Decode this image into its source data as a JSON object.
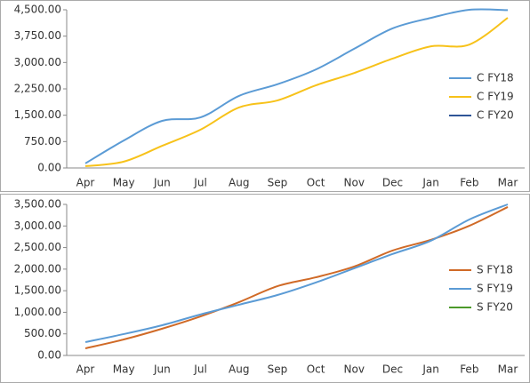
{
  "chart_data": [
    {
      "type": "line",
      "categories": [
        "Apr",
        "May",
        "Jun",
        "Jul",
        "Aug",
        "Sep",
        "Oct",
        "Nov",
        "Dec",
        "Jan",
        "Feb",
        "Mar"
      ],
      "ylim": [
        0,
        4500
      ],
      "yticks": [
        {
          "value": 0,
          "label": "0.00"
        },
        {
          "value": 750,
          "label": "750.00"
        },
        {
          "value": 1500,
          "label": "1,500.00"
        },
        {
          "value": 2250,
          "label": "2,250.00"
        },
        {
          "value": 3000,
          "label": "3,000.00"
        },
        {
          "value": 3750,
          "label": "3,750.00"
        },
        {
          "value": 4500,
          "label": "4,500.00"
        }
      ],
      "legend": "right",
      "series": [
        {
          "name": "C FY18",
          "color": "#5b9bd5",
          "values": [
            130,
            780,
            1340,
            1440,
            2050,
            2380,
            2800,
            3390,
            3970,
            4270,
            4500,
            4490
          ]
        },
        {
          "name": "C FY19",
          "color": "#f7c21a",
          "values": [
            50,
            180,
            630,
            1090,
            1720,
            1920,
            2350,
            2700,
            3110,
            3460,
            3510,
            4270
          ]
        },
        {
          "name": "C FY20",
          "color": "#2e5597",
          "values": [
            null,
            null,
            null,
            null,
            null,
            null,
            null,
            null,
            null,
            null,
            null,
            null
          ]
        }
      ]
    },
    {
      "type": "line",
      "categories": [
        "Apr",
        "May",
        "Jun",
        "Jul",
        "Aug",
        "Sep",
        "Oct",
        "Nov",
        "Dec",
        "Jan",
        "Feb",
        "Mar"
      ],
      "ylim": [
        0,
        3500
      ],
      "yticks": [
        {
          "value": 0,
          "label": "0.00"
        },
        {
          "value": 500,
          "label": "500.00"
        },
        {
          "value": 1000,
          "label": "1,000.00"
        },
        {
          "value": 1500,
          "label": "1,500.00"
        },
        {
          "value": 2000,
          "label": "2,000.00"
        },
        {
          "value": 2500,
          "label": "2,500.00"
        },
        {
          "value": 3000,
          "label": "3,000.00"
        },
        {
          "value": 3500,
          "label": "3,500.00"
        }
      ],
      "legend": "right",
      "series": [
        {
          "name": "S FY18",
          "color": "#d06a27",
          "values": [
            165,
            370,
            620,
            905,
            1235,
            1605,
            1810,
            2060,
            2430,
            2680,
            3005,
            3440
          ]
        },
        {
          "name": "S FY19",
          "color": "#5b9bd5",
          "values": [
            310,
            495,
            700,
            950,
            1175,
            1400,
            1690,
            2020,
            2350,
            2660,
            3150,
            3500
          ]
        },
        {
          "name": "S FY20",
          "color": "#4b9a2a",
          "values": [
            null,
            null,
            null,
            null,
            null,
            null,
            null,
            null,
            null,
            null,
            null,
            null
          ]
        }
      ]
    }
  ]
}
